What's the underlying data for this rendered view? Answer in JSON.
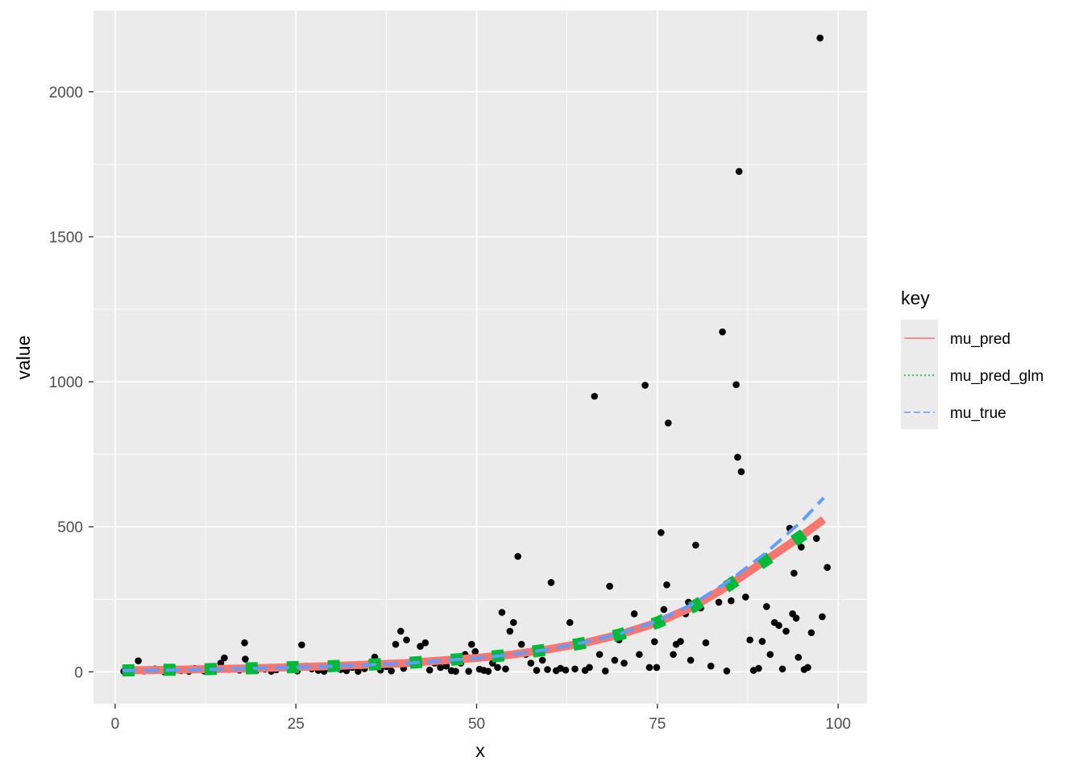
{
  "chart_data": {
    "type": "scatter",
    "xlabel": "x",
    "ylabel": "value",
    "xlim": [
      -3,
      104
    ],
    "ylim": [
      -110,
      2280
    ],
    "x_ticks": [
      0,
      25,
      50,
      75,
      100
    ],
    "y_ticks": [
      0,
      500,
      1000,
      1500,
      2000
    ],
    "x_tick_labels": [
      "0",
      "25",
      "50",
      "75",
      "100"
    ],
    "y_tick_labels": [
      "0",
      "500",
      "1000",
      "1500",
      "2000"
    ],
    "grid": true,
    "legend": {
      "title": "key",
      "position": "right",
      "entries": [
        {
          "label": "mu_pred",
          "color": "#F8766D",
          "linetype": "solid"
        },
        {
          "label": "mu_pred_glm",
          "color": "#00BA38",
          "linetype": "dotted"
        },
        {
          "label": "mu_true",
          "color": "#619CFF",
          "linetype": "dashed"
        }
      ]
    },
    "points": [
      [
        1.2,
        2
      ],
      [
        2.1,
        5
      ],
      [
        3.2,
        38
      ],
      [
        4.0,
        3
      ],
      [
        5.5,
        10
      ],
      [
        6.8,
        0
      ],
      [
        8.0,
        6
      ],
      [
        9.1,
        4
      ],
      [
        10.2,
        2
      ],
      [
        11.0,
        12
      ],
      [
        12.3,
        3
      ],
      [
        13.5,
        5
      ],
      [
        14.6,
        30
      ],
      [
        15.1,
        48
      ],
      [
        15.8,
        8
      ],
      [
        17.2,
        6
      ],
      [
        17.9,
        100
      ],
      [
        18.0,
        44
      ],
      [
        19.5,
        4
      ],
      [
        20.7,
        9
      ],
      [
        21.6,
        2
      ],
      [
        22.3,
        7
      ],
      [
        23.5,
        14
      ],
      [
        24.1,
        18
      ],
      [
        25.2,
        3
      ],
      [
        25.8,
        93
      ],
      [
        26.5,
        20
      ],
      [
        27.2,
        10
      ],
      [
        28.1,
        5
      ],
      [
        28.9,
        2
      ],
      [
        29.7,
        12
      ],
      [
        30.5,
        25
      ],
      [
        31.2,
        8
      ],
      [
        32.0,
        4
      ],
      [
        32.8,
        15
      ],
      [
        33.6,
        2
      ],
      [
        34.5,
        11
      ],
      [
        35.3,
        30
      ],
      [
        35.9,
        51
      ],
      [
        36.7,
        6
      ],
      [
        37.5,
        18
      ],
      [
        38.2,
        3
      ],
      [
        38.8,
        95
      ],
      [
        39.5,
        140
      ],
      [
        39.9,
        12
      ],
      [
        40.3,
        110
      ],
      [
        41.1,
        40
      ],
      [
        41.8,
        25
      ],
      [
        42.2,
        88
      ],
      [
        42.9,
        100
      ],
      [
        43.5,
        6
      ],
      [
        44.2,
        30
      ],
      [
        45.0,
        15
      ],
      [
        45.8,
        20
      ],
      [
        46.5,
        4
      ],
      [
        47.1,
        2
      ],
      [
        47.8,
        30
      ],
      [
        48.4,
        60
      ],
      [
        48.9,
        2
      ],
      [
        49.3,
        95
      ],
      [
        49.8,
        70
      ],
      [
        50.4,
        9
      ],
      [
        51.0,
        5
      ],
      [
        51.6,
        2
      ],
      [
        52.2,
        30
      ],
      [
        52.9,
        15
      ],
      [
        53.5,
        205
      ],
      [
        54.0,
        10
      ],
      [
        54.6,
        140
      ],
      [
        55.1,
        170
      ],
      [
        55.7,
        398
      ],
      [
        56.2,
        95
      ],
      [
        56.8,
        60
      ],
      [
        57.5,
        30
      ],
      [
        58.3,
        5
      ],
      [
        59.1,
        40
      ],
      [
        59.8,
        8
      ],
      [
        60.3,
        308
      ],
      [
        61.0,
        4
      ],
      [
        61.6,
        12
      ],
      [
        62.3,
        6
      ],
      [
        62.9,
        170
      ],
      [
        63.6,
        10
      ],
      [
        64.2,
        95
      ],
      [
        65.0,
        5
      ],
      [
        65.6,
        15
      ],
      [
        66.3,
        950
      ],
      [
        67.0,
        60
      ],
      [
        67.8,
        3
      ],
      [
        68.4,
        295
      ],
      [
        69.1,
        40
      ],
      [
        69.7,
        110
      ],
      [
        70.4,
        30
      ],
      [
        71.2,
        140
      ],
      [
        71.8,
        200
      ],
      [
        72.5,
        60
      ],
      [
        73.3,
        988
      ],
      [
        73.9,
        15
      ],
      [
        74.6,
        104
      ],
      [
        74.9,
        15
      ],
      [
        75.5,
        480
      ],
      [
        75.9,
        215
      ],
      [
        76.3,
        300
      ],
      [
        76.5,
        858
      ],
      [
        77.2,
        60
      ],
      [
        77.6,
        95
      ],
      [
        78.2,
        105
      ],
      [
        78.9,
        200
      ],
      [
        79.3,
        240
      ],
      [
        79.6,
        40
      ],
      [
        80.3,
        437
      ],
      [
        81.0,
        220
      ],
      [
        81.7,
        100
      ],
      [
        82.4,
        20
      ],
      [
        83.5,
        240
      ],
      [
        84.0,
        1172
      ],
      [
        84.6,
        3
      ],
      [
        85.2,
        245
      ],
      [
        85.9,
        990
      ],
      [
        86.1,
        740
      ],
      [
        86.3,
        1725
      ],
      [
        86.6,
        690
      ],
      [
        87.2,
        258
      ],
      [
        87.8,
        110
      ],
      [
        88.3,
        5
      ],
      [
        89.0,
        12
      ],
      [
        89.5,
        105
      ],
      [
        90.1,
        225
      ],
      [
        90.6,
        60
      ],
      [
        91.2,
        170
      ],
      [
        91.8,
        160
      ],
      [
        92.3,
        10
      ],
      [
        92.8,
        140
      ],
      [
        93.3,
        495
      ],
      [
        93.7,
        200
      ],
      [
        93.9,
        340
      ],
      [
        94.2,
        185
      ],
      [
        94.5,
        50
      ],
      [
        94.9,
        430
      ],
      [
        95.3,
        8
      ],
      [
        95.8,
        15
      ],
      [
        96.3,
        135
      ],
      [
        97.0,
        460
      ],
      [
        97.5,
        2185
      ],
      [
        97.8,
        190
      ],
      [
        98.5,
        360
      ]
    ],
    "series": [
      {
        "name": "mu_pred",
        "color": "#F8766D",
        "linetype": "solid",
        "x": [
          1,
          10,
          20,
          30,
          40,
          50,
          55,
          60,
          65,
          70,
          75,
          80,
          85,
          90,
          95,
          98
        ],
        "y": [
          5,
          8,
          13,
          20,
          30,
          48,
          60,
          78,
          100,
          130,
          170,
          225,
          300,
          385,
          470,
          525
        ]
      },
      {
        "name": "mu_pred_glm",
        "color": "#00BA38",
        "linetype": "dotted",
        "x": [
          1,
          10,
          20,
          30,
          40,
          50,
          55,
          60,
          65,
          70,
          75,
          80,
          85,
          90,
          95,
          98
        ],
        "y": [
          5,
          8,
          13,
          20,
          30,
          48,
          60,
          78,
          100,
          130,
          170,
          225,
          300,
          385,
          470,
          525
        ]
      },
      {
        "name": "mu_true",
        "color": "#619CFF",
        "linetype": "dashed",
        "x": [
          1,
          10,
          20,
          30,
          40,
          50,
          55,
          60,
          65,
          70,
          75,
          80,
          85,
          90,
          95,
          98
        ],
        "y": [
          4,
          7,
          12,
          19,
          29,
          47,
          60,
          78,
          102,
          133,
          175,
          235,
          315,
          410,
          520,
          600
        ]
      }
    ]
  }
}
